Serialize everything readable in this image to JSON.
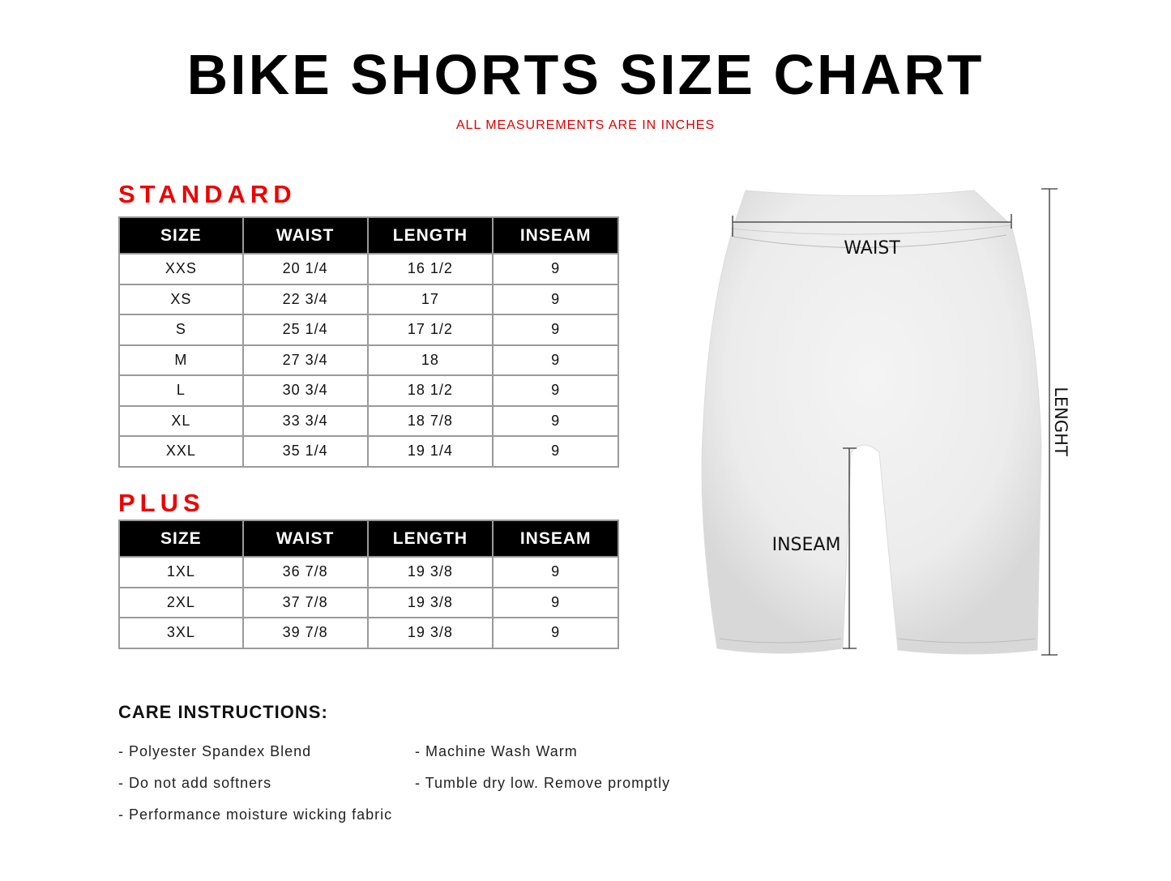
{
  "header": {
    "title": "BIKE SHORTS SIZE CHART",
    "subtitle": "ALL MEASUREMENTS ARE IN INCHES"
  },
  "columns": [
    "SIZE",
    "WAIST",
    "LENGTH",
    "INSEAM"
  ],
  "standard": {
    "label": "STANDARD",
    "rows": [
      [
        "XXS",
        "20 1/4",
        "16 1/2",
        "9"
      ],
      [
        "XS",
        "22 3/4",
        "17",
        "9"
      ],
      [
        "S",
        "25 1/4",
        "17 1/2",
        "9"
      ],
      [
        "M",
        "27 3/4",
        "18",
        "9"
      ],
      [
        "L",
        "30 3/4",
        "18 1/2",
        "9"
      ],
      [
        "XL",
        "33 3/4",
        "18 7/8",
        "9"
      ],
      [
        "XXL",
        "35 1/4",
        "19 1/4",
        "9"
      ]
    ]
  },
  "plus": {
    "label": "PLUS",
    "rows": [
      [
        "1XL",
        "36 7/8",
        "19 3/8",
        "9"
      ],
      [
        "2XL",
        "37 7/8",
        "19 3/8",
        "9"
      ],
      [
        "3XL",
        "39 7/8",
        "19 3/8",
        "9"
      ]
    ]
  },
  "diagram": {
    "waist": "WAIST",
    "inseam": "INSEAM",
    "length": "LENGHT"
  },
  "care": {
    "heading": "CARE INSTRUCTIONS:",
    "items": [
      "- Polyester Spandex Blend",
      "- Machine Wash Warm",
      "- Do not add softners",
      "- Tumble dry low. Remove promptly",
      "- Performance moisture wicking fabric"
    ]
  },
  "colors": {
    "accent": "#ee0000",
    "header_bg": "#000000"
  }
}
